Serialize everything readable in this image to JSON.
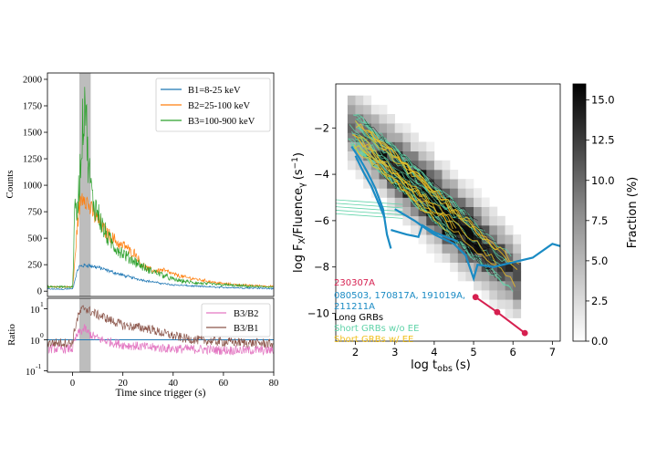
{
  "chart_data": [
    {
      "type": "line",
      "title": "",
      "xlabel": "",
      "ylabel": "Counts",
      "xlim": [
        -10,
        80
      ],
      "ylim": [
        -50,
        2060
      ],
      "yticks": [
        "0",
        "250",
        "500",
        "750",
        "1000",
        "1250",
        "1500",
        "1750",
        "2000"
      ],
      "shaded_interval": [
        2.5,
        7.0
      ],
      "legend_position": "top-right",
      "series": [
        {
          "name": "B1=8-25 keV",
          "color": "#1f77b4",
          "x": [
            -10,
            0,
            0.5,
            1.5,
            2.5,
            4,
            6,
            8,
            10,
            12,
            14,
            16,
            18,
            20,
            25,
            30,
            35,
            40,
            50,
            60,
            70,
            80
          ],
          "y": [
            20,
            20,
            60,
            160,
            230,
            240,
            245,
            235,
            225,
            210,
            195,
            180,
            165,
            150,
            120,
            95,
            75,
            60,
            45,
            35,
            30,
            25
          ]
        },
        {
          "name": "B2=25-100 keV",
          "color": "#ff7f0e",
          "x": [
            -10,
            0,
            0.5,
            1.5,
            2.5,
            3.5,
            4.5,
            5.5,
            6.5,
            7.5,
            9,
            11,
            13,
            15,
            17,
            19,
            21,
            23,
            25,
            27,
            30,
            33,
            36,
            40,
            45,
            50,
            55,
            60,
            70,
            80
          ],
          "y": [
            40,
            40,
            150,
            500,
            760,
            880,
            920,
            860,
            800,
            760,
            700,
            640,
            560,
            520,
            480,
            430,
            430,
            370,
            360,
            260,
            210,
            190,
            200,
            160,
            130,
            110,
            90,
            70,
            55,
            45
          ]
        },
        {
          "name": "B3=100-900 keV",
          "color": "#2ca02c",
          "x": [
            -10,
            0,
            0.5,
            1,
            1.5,
            2,
            3,
            4,
            5,
            6,
            7,
            8,
            9,
            10,
            12,
            14,
            16,
            18,
            20,
            22,
            25,
            28,
            30,
            33,
            36,
            40,
            45,
            50,
            60,
            70,
            80
          ],
          "y": [
            40,
            40,
            420,
            850,
            700,
            820,
            1150,
            1550,
            1900,
            1300,
            1050,
            850,
            800,
            750,
            600,
            500,
            440,
            400,
            360,
            320,
            280,
            230,
            200,
            180,
            150,
            110,
            90,
            75,
            60,
            45,
            40
          ]
        }
      ]
    },
    {
      "type": "line",
      "title": "",
      "xlabel": "Time since trigger (s)",
      "ylabel": "Ratio",
      "xlim": [
        -10,
        80
      ],
      "ylim_log10": [
        -1,
        1.2
      ],
      "xticks": [
        "0",
        "20",
        "40",
        "60",
        "80"
      ],
      "yticks": [
        "10",
        "10",
        "10"
      ],
      "ytick_exponents": [
        "-1",
        "0",
        "1"
      ],
      "reference_line_y": 1,
      "shaded_interval": [
        2.5,
        7.0
      ],
      "legend_position": "top-right",
      "series": [
        {
          "name": "B3/B2",
          "color": "#e377c2",
          "x": [
            -10,
            0,
            1,
            2,
            3,
            4,
            5,
            6,
            8,
            10,
            12,
            15,
            20,
            25,
            30,
            40,
            50,
            60,
            70,
            80
          ],
          "y": [
            0.5,
            0.5,
            0.9,
            1.3,
            1.6,
            1.8,
            2.0,
            1.5,
            1.2,
            1.0,
            0.9,
            0.8,
            0.65,
            0.6,
            0.55,
            0.5,
            0.48,
            0.45,
            0.45,
            0.45
          ]
        },
        {
          "name": "B3/B1",
          "color": "#8c564b",
          "x": [
            -10,
            0,
            1,
            2,
            3,
            4,
            5,
            6,
            8,
            10,
            12,
            15,
            20,
            25,
            30,
            35,
            40,
            45,
            50,
            60,
            70,
            80
          ],
          "y": [
            0.75,
            0.75,
            2.0,
            4.0,
            6.0,
            7.5,
            8.5,
            7.0,
            6.0,
            5.0,
            4.5,
            3.5,
            2.5,
            2.2,
            2.0,
            1.5,
            1.2,
            1.0,
            0.9,
            0.8,
            0.75,
            0.7
          ]
        }
      ]
    },
    {
      "type": "heatmap",
      "title": "",
      "xlabel": "log t",
      "xlabel_sub": "obs",
      "xlabel_unit": "(s)",
      "ylabel": "log F",
      "ylabel_F_sub": "X",
      "ylabel_mid": "/Fluence",
      "ylabel_gamma_sub": "γ",
      "ylabel_unit": "(s",
      "ylabel_unit_exp": "−1",
      "ylabel_close": ")",
      "xlim": [
        1.5,
        7.2
      ],
      "ylim": [
        -11.2,
        -0.1
      ],
      "xticks": [
        "2",
        "3",
        "4",
        "5",
        "6",
        "7"
      ],
      "yticks": [
        "−10",
        "−8",
        "−6",
        "−4",
        "−2"
      ],
      "colorbar": {
        "label": "Fraction (%)",
        "range": [
          0,
          16
        ],
        "ticks": [
          "0.0",
          "2.5",
          "5.0",
          "7.5",
          "10.0",
          "12.5",
          "15.0"
        ]
      },
      "legend_position": "bottom-left",
      "legend": [
        {
          "label": "230307A",
          "color": "#d62050"
        },
        {
          "label": "080503, 170817A, 191019A,",
          "color": "#1a8bc4"
        },
        {
          "label": "211211A",
          "color": "#1a8bc4"
        },
        {
          "label": "Long GRBs",
          "color": "#000000"
        },
        {
          "label": "Short GRBs w/o EE",
          "color": "#5fd3a8"
        },
        {
          "label": "Short GRBs w/ EE",
          "color": "#f0c020"
        }
      ],
      "series": [
        {
          "name": "230307A",
          "color": "#d62050",
          "x": [
            5.05,
            5.6,
            6.3
          ],
          "y": [
            -9.3,
            -9.95,
            -10.85
          ]
        },
        {
          "name": "080503",
          "color": "#1a8bc4",
          "x": [
            1.9,
            2.1,
            2.3,
            2.5,
            2.7,
            2.8,
            2.9
          ],
          "y": [
            -2.8,
            -3.3,
            -3.9,
            -4.6,
            -5.5,
            -6.6,
            -7.2
          ]
        },
        {
          "name": "170817A",
          "color": "#1a8bc4",
          "x": [
            2.0,
            2.2,
            2.4,
            2.6,
            2.75
          ],
          "y": [
            -3.2,
            -3.9,
            -4.5,
            -5.3,
            -5.9
          ]
        },
        {
          "name": "191019A",
          "color": "#1a8bc4",
          "x": [
            3.0,
            3.5,
            4.0,
            4.5,
            4.8,
            5.0,
            5.1,
            5.5,
            6.0,
            6.5,
            7.0,
            7.2
          ],
          "y": [
            -5.5,
            -6.0,
            -6.6,
            -7.0,
            -7.5,
            -8.5,
            -7.9,
            -8.0,
            -7.8,
            -7.6,
            -7.0,
            -7.1
          ]
        },
        {
          "name": "211211A",
          "color": "#1a8bc4",
          "x": [
            2.9,
            3.3,
            3.6,
            3.7,
            4.0,
            4.3,
            4.6
          ],
          "y": [
            -6.4,
            -6.6,
            -6.7,
            -6.2,
            -6.5,
            -6.7,
            -6.9
          ]
        }
      ]
    }
  ]
}
